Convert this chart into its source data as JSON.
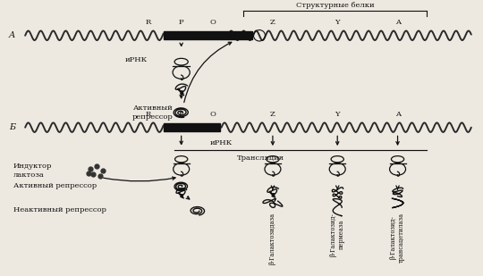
{
  "background": "#ede9e0",
  "label_A": "А",
  "label_B": "Б",
  "structural_proteins_label": "Структурные белки",
  "mrna_label_A": "иРНК",
  "mrna_label_B": "иРНК",
  "active_repressor_label_A": "Активный\nрепрессор",
  "active_repressor_label_B": "Активный репрессор",
  "inductor_label": "Индуктор\nлактоза",
  "inactive_repressor_label": "Неактивный репрессор",
  "translation_label": "Трансляция",
  "beta_gal_label": "β-Галактозидаза",
  "beta_perm_label": "β-Галактозид-\nпермеаза",
  "beta_acet_label": "β-Галактозид-\nтрансацетилаза",
  "gene_R": "R",
  "gene_P": "P",
  "gene_O": "O",
  "gene_Z": "Z",
  "gene_Y": "Y",
  "gene_A": "A",
  "tc": "#111111",
  "fig_w": 5.4,
  "fig_h": 3.09,
  "xlim": [
    0,
    10.8
  ],
  "ylim": [
    0,
    6.18
  ]
}
